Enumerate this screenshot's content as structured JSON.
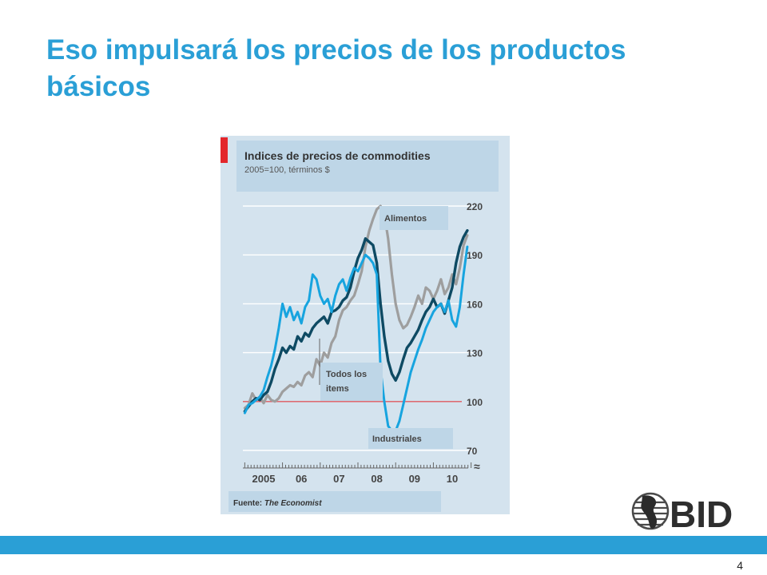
{
  "slide": {
    "title": "Eso impulsará los precios de los productos básicos",
    "page_number": "4",
    "logo_text": "BID"
  },
  "colors": {
    "accent": "#2a9fd6",
    "chart_bg": "#d4e3ee",
    "header_box": "#bed6e7",
    "red_marker": "#e3262b",
    "reference_line": "#e05a60",
    "food": "#9e9e9e",
    "all_items": "#0e4a63",
    "industrials": "#17a4df"
  },
  "chart_data": {
    "type": "line",
    "title": "Indices de precios de commodities",
    "subtitle": "2005=100, términos $",
    "source_prefix": "Fuente: ",
    "source_name": "The Economist",
    "x_ticks": [
      "2005",
      "06",
      "07",
      "08",
      "09",
      "10"
    ],
    "ylim": [
      70,
      220
    ],
    "y_ticks": [
      220,
      190,
      160,
      130,
      100,
      70
    ],
    "reference_value": 100,
    "axis_break_symbol": "≈",
    "series": [
      {
        "name": "Alimentos",
        "color": "#9e9e9e",
        "x": [
          2005.0,
          2005.1,
          2005.2,
          2005.3,
          2005.4,
          2005.5,
          2005.6,
          2005.7,
          2005.8,
          2005.9,
          2006.0,
          2006.1,
          2006.2,
          2006.3,
          2006.4,
          2006.5,
          2006.6,
          2006.7,
          2006.8,
          2006.9,
          2007.0,
          2007.1,
          2007.2,
          2007.3,
          2007.4,
          2007.5,
          2007.6,
          2007.7,
          2007.8,
          2007.9,
          2008.0,
          2008.1,
          2008.2,
          2008.3,
          2008.4,
          2008.5,
          2008.6,
          2008.7,
          2008.8,
          2008.9,
          2009.0,
          2009.1,
          2009.2,
          2009.3,
          2009.4,
          2009.5,
          2009.6,
          2009.7,
          2009.8,
          2009.9,
          2010.0,
          2010.1,
          2010.2,
          2010.3,
          2010.4,
          2010.5,
          2010.6,
          2010.7,
          2010.8,
          2010.9
        ],
        "values": [
          96,
          98,
          105,
          101,
          103,
          99,
          104,
          101,
          100,
          102,
          106,
          108,
          110,
          109,
          112,
          110,
          116,
          118,
          115,
          126,
          122,
          130,
          127,
          136,
          140,
          150,
          156,
          158,
          162,
          165,
          172,
          180,
          195,
          205,
          212,
          218,
          220,
          215,
          200,
          178,
          160,
          150,
          145,
          147,
          152,
          158,
          165,
          160,
          170,
          168,
          163,
          168,
          175,
          166,
          170,
          178,
          172,
          182,
          196,
          202
        ]
      },
      {
        "name": "Todos los items",
        "color": "#0e4a63",
        "x": [
          2005.0,
          2005.1,
          2005.2,
          2005.3,
          2005.4,
          2005.5,
          2005.6,
          2005.7,
          2005.8,
          2005.9,
          2006.0,
          2006.1,
          2006.2,
          2006.3,
          2006.4,
          2006.5,
          2006.6,
          2006.7,
          2006.8,
          2006.9,
          2007.0,
          2007.1,
          2007.2,
          2007.3,
          2007.4,
          2007.5,
          2007.6,
          2007.7,
          2007.8,
          2007.9,
          2008.0,
          2008.1,
          2008.2,
          2008.3,
          2008.4,
          2008.5,
          2008.6,
          2008.7,
          2008.8,
          2008.9,
          2009.0,
          2009.1,
          2009.2,
          2009.3,
          2009.4,
          2009.5,
          2009.6,
          2009.7,
          2009.8,
          2009.9,
          2010.0,
          2010.1,
          2010.2,
          2010.3,
          2010.4,
          2010.5,
          2010.6,
          2010.7,
          2010.8,
          2010.9
        ],
        "values": [
          94,
          97,
          100,
          102,
          101,
          104,
          106,
          112,
          120,
          126,
          133,
          130,
          134,
          132,
          140,
          137,
          142,
          140,
          145,
          148,
          150,
          152,
          148,
          155,
          156,
          158,
          162,
          164,
          170,
          180,
          188,
          193,
          200,
          198,
          196,
          185,
          160,
          140,
          125,
          117,
          113,
          118,
          126,
          133,
          136,
          140,
          144,
          150,
          155,
          158,
          163,
          158,
          160,
          154,
          162,
          170,
          185,
          195,
          201,
          205
        ]
      },
      {
        "name": "Industriales",
        "color": "#17a4df",
        "x": [
          2005.0,
          2005.1,
          2005.2,
          2005.3,
          2005.4,
          2005.5,
          2005.6,
          2005.7,
          2005.8,
          2005.9,
          2006.0,
          2006.1,
          2006.2,
          2006.3,
          2006.4,
          2006.5,
          2006.6,
          2006.7,
          2006.8,
          2006.9,
          2007.0,
          2007.1,
          2007.2,
          2007.3,
          2007.4,
          2007.5,
          2007.6,
          2007.7,
          2007.8,
          2007.9,
          2008.0,
          2008.1,
          2008.2,
          2008.3,
          2008.4,
          2008.5,
          2008.6,
          2008.7,
          2008.8,
          2008.9,
          2009.0,
          2009.1,
          2009.2,
          2009.3,
          2009.4,
          2009.5,
          2009.6,
          2009.7,
          2009.8,
          2009.9,
          2010.0,
          2010.1,
          2010.2,
          2010.3,
          2010.4,
          2010.5,
          2010.6,
          2010.7,
          2010.8,
          2010.9
        ],
        "values": [
          93,
          98,
          99,
          101,
          103,
          107,
          115,
          122,
          132,
          145,
          160,
          152,
          158,
          150,
          155,
          148,
          158,
          162,
          178,
          175,
          165,
          160,
          163,
          155,
          165,
          172,
          175,
          168,
          176,
          182,
          180,
          185,
          190,
          188,
          185,
          178,
          120,
          100,
          85,
          82,
          82,
          88,
          98,
          108,
          118,
          125,
          132,
          138,
          145,
          150,
          155,
          158,
          160,
          155,
          162,
          150,
          146,
          158,
          178,
          195
        ]
      }
    ]
  }
}
